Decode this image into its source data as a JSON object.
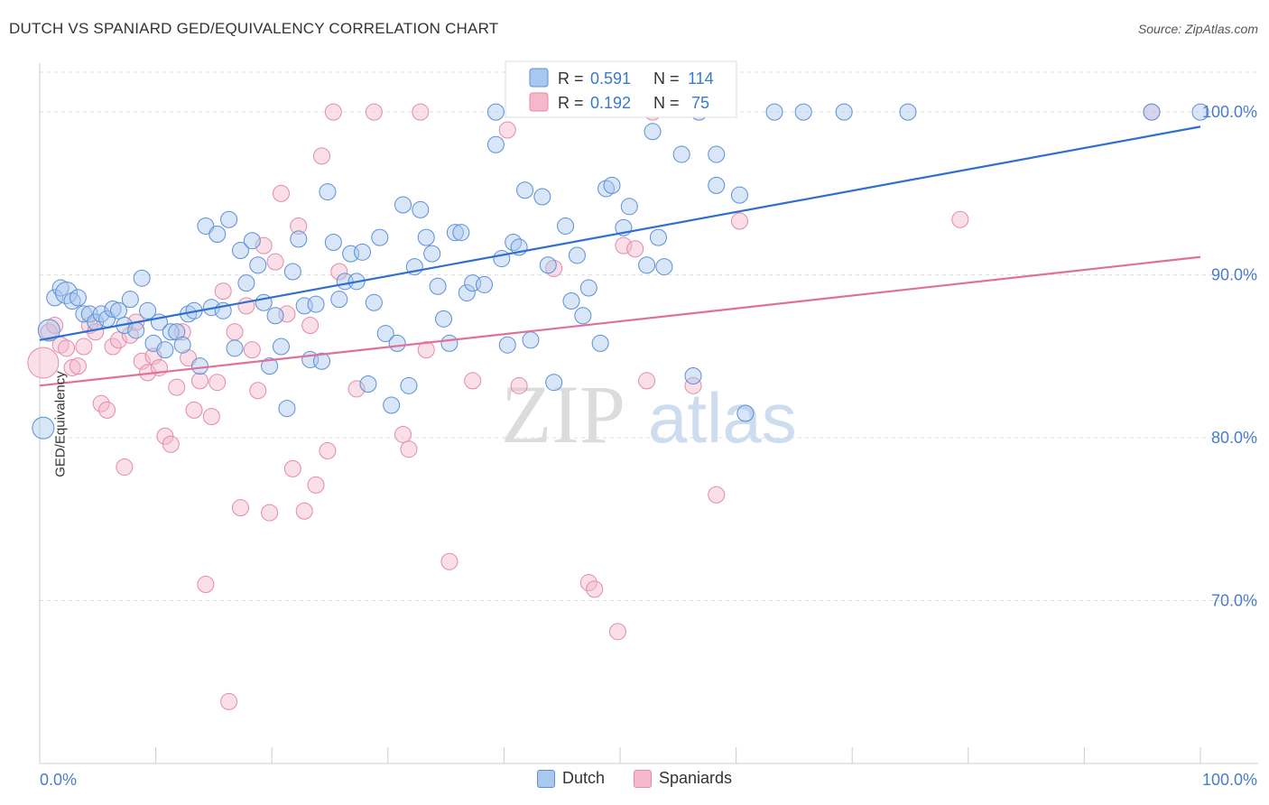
{
  "header": {
    "title": "DUTCH VS SPANIARD GED/EQUIVALENCY CORRELATION CHART",
    "source": "Source: ZipAtlas.com"
  },
  "watermark": {
    "zip": "ZIP",
    "atlas": "atlas"
  },
  "colors": {
    "dutch_fill": "#a8c8f0",
    "dutch_stroke": "#5b8fd6",
    "dutch_line": "#2e6fd0",
    "spaniard_fill": "#f5b8cb",
    "spaniard_stroke": "#e48aa8",
    "spaniard_line": "#e0709a",
    "tick_label": "#4a7cc9",
    "grid": "#dddddd"
  },
  "chart_data": {
    "type": "scatter",
    "title": "DUTCH VS SPANIARD GED/EQUIVALENCY CORRELATION CHART",
    "xlabel": "",
    "ylabel": "GED/Equivalency",
    "xlim": [
      0,
      100
    ],
    "ylim": [
      60,
      103
    ],
    "x_tick_labels": [
      "0.0%",
      "100.0%"
    ],
    "y_ticks": [
      {
        "value": 70,
        "label": "70.0%"
      },
      {
        "value": 80,
        "label": "80.0%"
      },
      {
        "value": 90,
        "label": "90.0%"
      },
      {
        "value": 100,
        "label": "100.0%"
      }
    ],
    "grid": true,
    "legend": {
      "placement": "top-center",
      "entries": [
        {
          "r_label": "R =",
          "r_value": "0.591",
          "n_label": "N =",
          "n_value": "114"
        },
        {
          "r_label": "R =",
          "r_value": "0.192",
          "n_label": "N =",
          "n_value": "75"
        }
      ]
    },
    "series": [
      {
        "name": "Dutch",
        "trendline": {
          "x": [
            0,
            100
          ],
          "y": [
            86.0,
            99.1
          ]
        },
        "points": [
          [
            0.3,
            80.6
          ],
          [
            0.8,
            86.6
          ],
          [
            1.3,
            88.6
          ],
          [
            1.8,
            89.2
          ],
          [
            2.3,
            88.9
          ],
          [
            2.8,
            88.4
          ],
          [
            3.3,
            88.6
          ],
          [
            3.8,
            87.6
          ],
          [
            4.3,
            87.6
          ],
          [
            4.8,
            87.1
          ],
          [
            5.3,
            87.6
          ],
          [
            5.8,
            87.3
          ],
          [
            6.3,
            87.9
          ],
          [
            6.8,
            87.8
          ],
          [
            7.3,
            86.9
          ],
          [
            7.8,
            88.5
          ],
          [
            8.3,
            86.6
          ],
          [
            8.8,
            89.8
          ],
          [
            9.3,
            87.8
          ],
          [
            9.8,
            85.8
          ],
          [
            10.3,
            87.1
          ],
          [
            10.8,
            85.4
          ],
          [
            11.3,
            86.5
          ],
          [
            11.8,
            86.5
          ],
          [
            12.3,
            85.7
          ],
          [
            12.8,
            87.6
          ],
          [
            13.3,
            87.8
          ],
          [
            13.8,
            84.4
          ],
          [
            14.3,
            93.0
          ],
          [
            14.8,
            88.0
          ],
          [
            15.3,
            92.5
          ],
          [
            15.8,
            87.8
          ],
          [
            16.3,
            93.4
          ],
          [
            16.8,
            85.5
          ],
          [
            17.3,
            91.5
          ],
          [
            17.8,
            89.5
          ],
          [
            18.3,
            92.1
          ],
          [
            18.8,
            90.6
          ],
          [
            19.3,
            88.3
          ],
          [
            19.8,
            84.4
          ],
          [
            20.3,
            87.5
          ],
          [
            20.8,
            85.6
          ],
          [
            21.3,
            81.8
          ],
          [
            21.8,
            90.2
          ],
          [
            22.3,
            92.2
          ],
          [
            22.8,
            88.1
          ],
          [
            23.3,
            84.8
          ],
          [
            23.8,
            88.2
          ],
          [
            24.3,
            84.7
          ],
          [
            24.8,
            95.1
          ],
          [
            25.3,
            92.0
          ],
          [
            25.8,
            88.5
          ],
          [
            26.3,
            89.6
          ],
          [
            26.8,
            91.3
          ],
          [
            27.3,
            89.6
          ],
          [
            27.8,
            91.4
          ],
          [
            28.3,
            83.3
          ],
          [
            28.8,
            88.3
          ],
          [
            29.3,
            92.3
          ],
          [
            29.8,
            86.4
          ],
          [
            30.3,
            82.0
          ],
          [
            30.8,
            85.8
          ],
          [
            31.3,
            94.3
          ],
          [
            31.8,
            83.2
          ],
          [
            32.3,
            90.5
          ],
          [
            32.8,
            94.0
          ],
          [
            33.3,
            92.3
          ],
          [
            33.8,
            91.3
          ],
          [
            34.3,
            89.3
          ],
          [
            34.8,
            87.3
          ],
          [
            35.3,
            85.8
          ],
          [
            35.8,
            92.6
          ],
          [
            36.3,
            92.6
          ],
          [
            36.8,
            88.9
          ],
          [
            37.3,
            89.5
          ],
          [
            38.3,
            89.4
          ],
          [
            39.3,
            98.0
          ],
          [
            39.8,
            91.0
          ],
          [
            40.3,
            85.7
          ],
          [
            40.8,
            92.0
          ],
          [
            41.3,
            91.7
          ],
          [
            41.8,
            95.2
          ],
          [
            42.3,
            86.0
          ],
          [
            43.3,
            94.8
          ],
          [
            43.8,
            90.6
          ],
          [
            44.3,
            83.4
          ],
          [
            45.3,
            93.0
          ],
          [
            45.8,
            88.4
          ],
          [
            46.3,
            91.2
          ],
          [
            46.8,
            87.5
          ],
          [
            47.3,
            89.2
          ],
          [
            48.3,
            85.8
          ],
          [
            48.8,
            95.3
          ],
          [
            49.3,
            95.5
          ],
          [
            50.3,
            92.9
          ],
          [
            50.8,
            94.2
          ],
          [
            52.3,
            90.6
          ],
          [
            52.8,
            98.8
          ],
          [
            53.3,
            92.3
          ],
          [
            53.8,
            90.5
          ],
          [
            55.3,
            97.4
          ],
          [
            56.3,
            83.8
          ],
          [
            58.3,
            95.5
          ],
          [
            58.3,
            97.4
          ],
          [
            60.3,
            94.9
          ],
          [
            60.8,
            81.5
          ],
          [
            63.3,
            100.0
          ],
          [
            65.8,
            100.0
          ],
          [
            69.3,
            100.0
          ],
          [
            74.8,
            100.0
          ],
          [
            95.8,
            100.0
          ],
          [
            100.0,
            100.0
          ],
          [
            39.3,
            100.0
          ],
          [
            56.8,
            100.0
          ]
        ]
      },
      {
        "name": "Spaniards",
        "trendline": {
          "x": [
            0,
            100
          ],
          "y": [
            83.2,
            91.1
          ]
        },
        "points": [
          [
            0.3,
            84.6
          ],
          [
            0.8,
            86.5
          ],
          [
            1.3,
            86.9
          ],
          [
            1.8,
            85.7
          ],
          [
            2.3,
            85.5
          ],
          [
            2.8,
            84.3
          ],
          [
            3.3,
            84.4
          ],
          [
            3.8,
            85.6
          ],
          [
            4.3,
            86.9
          ],
          [
            4.8,
            86.5
          ],
          [
            5.3,
            82.1
          ],
          [
            5.8,
            81.7
          ],
          [
            6.3,
            85.6
          ],
          [
            6.8,
            86.0
          ],
          [
            7.3,
            78.2
          ],
          [
            7.8,
            86.3
          ],
          [
            8.3,
            87.1
          ],
          [
            8.8,
            84.7
          ],
          [
            9.3,
            84.0
          ],
          [
            9.8,
            85.0
          ],
          [
            10.3,
            84.3
          ],
          [
            10.8,
            80.1
          ],
          [
            11.3,
            79.6
          ],
          [
            11.8,
            83.1
          ],
          [
            12.3,
            86.5
          ],
          [
            12.8,
            84.9
          ],
          [
            13.3,
            81.7
          ],
          [
            13.8,
            83.5
          ],
          [
            14.3,
            71.0
          ],
          [
            14.8,
            81.3
          ],
          [
            15.3,
            83.4
          ],
          [
            15.8,
            89.0
          ],
          [
            16.3,
            63.8
          ],
          [
            16.8,
            86.5
          ],
          [
            17.3,
            75.7
          ],
          [
            17.8,
            88.1
          ],
          [
            18.3,
            85.4
          ],
          [
            18.8,
            82.9
          ],
          [
            19.3,
            91.8
          ],
          [
            19.8,
            75.4
          ],
          [
            20.3,
            90.8
          ],
          [
            20.8,
            95.0
          ],
          [
            21.3,
            87.6
          ],
          [
            21.8,
            78.1
          ],
          [
            22.3,
            93.0
          ],
          [
            22.8,
            75.5
          ],
          [
            23.3,
            86.9
          ],
          [
            23.8,
            77.1
          ],
          [
            24.3,
            97.3
          ],
          [
            24.8,
            79.2
          ],
          [
            25.3,
            100.0
          ],
          [
            25.8,
            90.2
          ],
          [
            27.3,
            83.0
          ],
          [
            28.8,
            100.0
          ],
          [
            31.3,
            80.2
          ],
          [
            31.8,
            79.3
          ],
          [
            32.8,
            100.0
          ],
          [
            33.3,
            85.4
          ],
          [
            35.3,
            72.4
          ],
          [
            37.3,
            83.5
          ],
          [
            40.3,
            98.9
          ],
          [
            41.3,
            83.2
          ],
          [
            44.3,
            90.4
          ],
          [
            47.3,
            71.1
          ],
          [
            47.8,
            70.7
          ],
          [
            49.8,
            68.1
          ],
          [
            50.3,
            91.8
          ],
          [
            51.3,
            91.6
          ],
          [
            52.3,
            83.5
          ],
          [
            52.8,
            100.0
          ],
          [
            56.3,
            83.2
          ],
          [
            58.3,
            76.5
          ],
          [
            60.3,
            93.3
          ],
          [
            79.3,
            93.4
          ],
          [
            95.8,
            100.0
          ]
        ]
      }
    ]
  },
  "legend_bottom": [
    {
      "label": "Dutch"
    },
    {
      "label": "Spaniards"
    }
  ]
}
